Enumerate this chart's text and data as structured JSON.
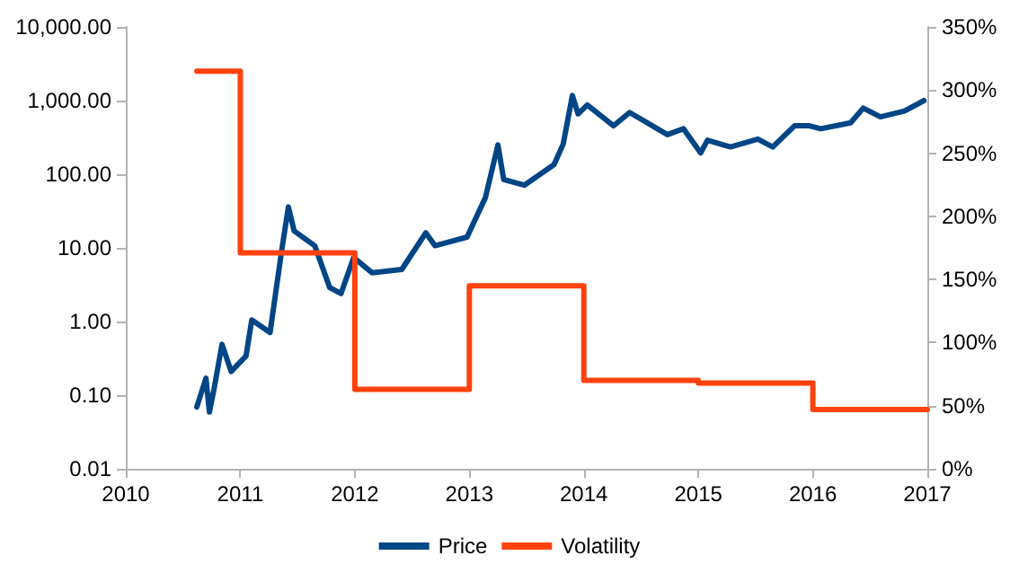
{
  "chart_data": {
    "type": "line",
    "legend": "bottom",
    "grid": false,
    "marker": "none",
    "line_style": "solid",
    "log": "y",
    "xlim": [
      2010,
      2017
    ],
    "xticks": [
      2010,
      2011,
      2012,
      2013,
      2014,
      2015,
      2016,
      2017
    ],
    "ylim": [
      0.01,
      10000
    ],
    "yticks": [
      {
        "value": 0.01,
        "label": "0.01"
      },
      {
        "value": 0.1,
        "label": "0.10"
      },
      {
        "value": 1,
        "label": "1.00"
      },
      {
        "value": 10,
        "label": "10.00"
      },
      {
        "value": 100,
        "label": "100.00"
      },
      {
        "value": 1000,
        "label": "1,000.00"
      },
      {
        "value": 10000,
        "label": "10,000.00"
      }
    ],
    "y2lim": [
      0,
      350
    ],
    "y2ticks": [
      {
        "value": 0,
        "label": "0%"
      },
      {
        "value": 50,
        "label": "50%"
      },
      {
        "value": 100,
        "label": "100%"
      },
      {
        "value": 150,
        "label": "150%"
      },
      {
        "value": 200,
        "label": "200%"
      },
      {
        "value": 250,
        "label": "250%"
      },
      {
        "value": 300,
        "label": "300%"
      },
      {
        "value": 350,
        "label": "350%"
      }
    ],
    "series": [
      {
        "name": "Price",
        "color": "#004586",
        "x": [
          2010.62,
          2010.7,
          2010.73,
          2010.77,
          2010.84,
          2010.92,
          2011.05,
          2011.1,
          2011.26,
          2011.36,
          2011.42,
          2011.47,
          2011.65,
          2011.78,
          2011.88,
          2011.99,
          2012.15,
          2012.41,
          2012.62,
          2012.7,
          2012.98,
          2013.14,
          2013.25,
          2013.3,
          2013.48,
          2013.74,
          2013.82,
          2013.9,
          2013.95,
          2014.03,
          2014.26,
          2014.4,
          2014.73,
          2014.87,
          2015.02,
          2015.08,
          2015.28,
          2015.52,
          2015.65,
          2015.84,
          2015.97,
          2016.07,
          2016.33,
          2016.44,
          2016.59,
          2016.8,
          2016.97
        ],
        "values": [
          0.069,
          0.17,
          0.059,
          0.12,
          0.49,
          0.21,
          0.34,
          1.05,
          0.71,
          8.9,
          36,
          17,
          10.7,
          2.9,
          2.4,
          7.4,
          4.6,
          5.1,
          16,
          10.7,
          14,
          48,
          250,
          85,
          71,
          135,
          257,
          1170,
          660,
          870,
          455,
          690,
          345,
          415,
          195,
          290,
          235,
          300,
          235,
          455,
          455,
          415,
          500,
          790,
          600,
          720,
          1000
        ]
      },
      {
        "name": "Volatility",
        "type": "step",
        "axis": "y2",
        "color": "#ff420e",
        "x": [
          2010.62,
          2011,
          2012,
          2013,
          2014,
          2015,
          2016,
          2017
        ],
        "values": [
          315,
          171,
          63,
          145,
          70,
          68,
          47,
          47
        ]
      }
    ]
  }
}
